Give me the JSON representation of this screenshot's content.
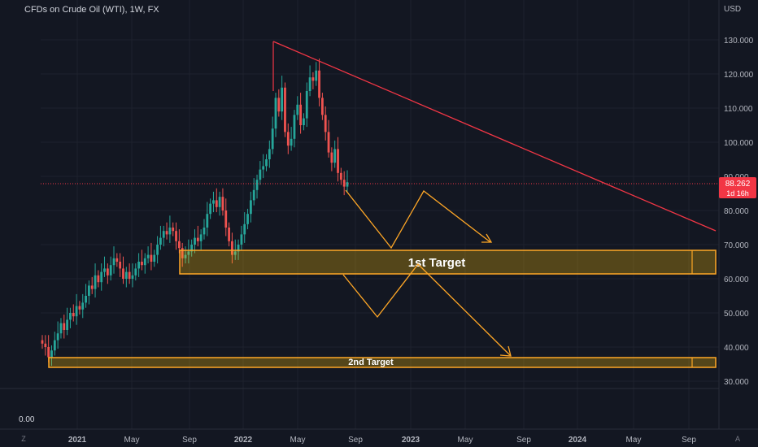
{
  "header": {
    "title": "CFDs on Crude Oil (WTI), 1W, FX",
    "currency": "USD"
  },
  "price_tag": {
    "value": "88.262",
    "countdown": "1d 16h",
    "color": "#f23645"
  },
  "footer": {
    "zero_label": "0.00",
    "left_btn": "Z",
    "right_btn": "A"
  },
  "colors": {
    "background": "#131722",
    "up": "#26a69a",
    "down": "#ef5350",
    "trendline": "#f23645",
    "target": "#ffa726"
  },
  "annotations": {
    "target1_label": "1st Target",
    "target2_label": "2nd Target"
  },
  "chart_data": {
    "type": "candlestick",
    "title": "CFDs on Crude Oil (WTI), 1W, FX",
    "ylim": [
      30,
      140
    ],
    "y_ticks": [
      "130.000",
      "120.000",
      "110.000",
      "100.000",
      "90.000",
      "80.000",
      "70.000",
      "60.000",
      "50.000",
      "40.000",
      "30.000"
    ],
    "x_ticks": [
      "2021",
      "May",
      "Sep",
      "2022",
      "May",
      "Sep",
      "2023",
      "May",
      "Sep",
      "2024",
      "May",
      "Sep"
    ],
    "last_price": 88.262,
    "target_zones": [
      {
        "label": "1st Target",
        "low": 61.5,
        "high": 68.5
      },
      {
        "label": "2nd Target",
        "low": 34.5,
        "high": 37.5
      }
    ]
  }
}
